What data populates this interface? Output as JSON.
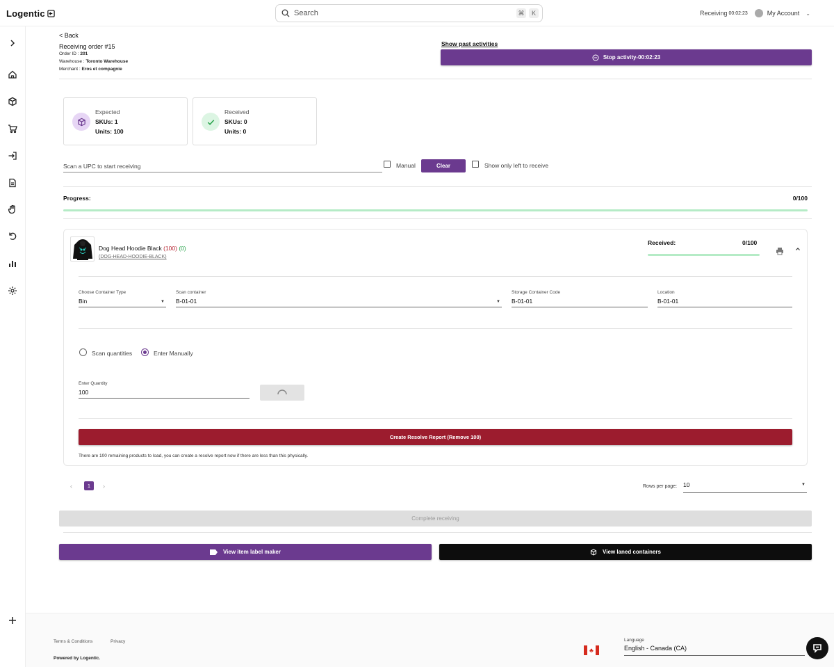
{
  "app": {
    "logo_text": "Logentic"
  },
  "search": {
    "placeholder": "Search",
    "shortcut_mod": "⌘",
    "shortcut_key": "K"
  },
  "topbar": {
    "activity_label": "Receiving",
    "activity_timer": "00:02:23",
    "account_label": "My Account"
  },
  "sidebar": {
    "icons": [
      "chevron-right-icon",
      "home-icon",
      "box-icon",
      "cart-icon",
      "import-icon",
      "document-icon",
      "hand-icon",
      "returns-icon",
      "analytics-icon",
      "settings-icon",
      "plus-icon"
    ]
  },
  "header": {
    "back_label": "< Back",
    "title": "Receiving order #15",
    "order_id_label": "Order ID :",
    "order_id": "201",
    "warehouse_label": "Warehouse :",
    "warehouse": "Toronto Warehouse",
    "merchant_label": "Merchant :",
    "merchant": "Eros et compagnie",
    "show_past_label": "Show past activities",
    "stop_label": "Stop activity-00:02:23"
  },
  "summary": {
    "expected": {
      "label": "Expected",
      "skus": "SKUs: 1",
      "units": "Units: 100"
    },
    "received": {
      "label": "Received",
      "skus": "SKUs: 0",
      "units": "Units: 0"
    }
  },
  "scan": {
    "placeholder": "Scan a UPC to start receiving",
    "manual_label": "Manual",
    "clear_label": "Clear",
    "left_only_label": "Show only left to receive"
  },
  "progress": {
    "label": "Progress:",
    "value": "0/100",
    "fraction": 0
  },
  "item": {
    "name": "Dog Head Hoodie Black",
    "expected_count": "(100)",
    "received_count": "(0)",
    "sku": "(DOG-HEAD-HOODIE-BLACK)",
    "received_label": "Received:",
    "received_value": "0/100",
    "received_fraction": 0,
    "container_type_label": "Choose Container Type",
    "container_type_value": "Bin",
    "scan_container_label": "Scan container",
    "scan_container_value": "B-01-01",
    "storage_code_label": "Storage Container Code",
    "storage_code_value": "B-01-01",
    "location_label": "Location",
    "location_value": "B-01-01",
    "mode_scan_label": "Scan quantities",
    "mode_manual_label": "Enter Manually",
    "quantity_label": "Enter Quantity",
    "quantity_value": "100",
    "resolve_label": "Create Resolve Report (Remove 100)",
    "resolve_note": "There are 100 remaining products to load, you can create a resolve report now if there are less than this physically."
  },
  "pagination": {
    "current_page": "1",
    "rows_label": "Rows per page:",
    "rows_value": "10"
  },
  "actions": {
    "complete_label": "Complete receiving",
    "label_maker_label": "View item label maker",
    "laned_label": "View laned containers"
  },
  "footer": {
    "terms": "Terms & Conditions",
    "privacy": "Privacy",
    "powered": "Powered by Logentic.",
    "language_label": "Language",
    "language_value": "English - Canada (CA)"
  },
  "colors": {
    "brand": "#6b3a8f",
    "danger": "#9c1c2e",
    "success": "#24a148",
    "progress_track": "#b5ebc6"
  }
}
